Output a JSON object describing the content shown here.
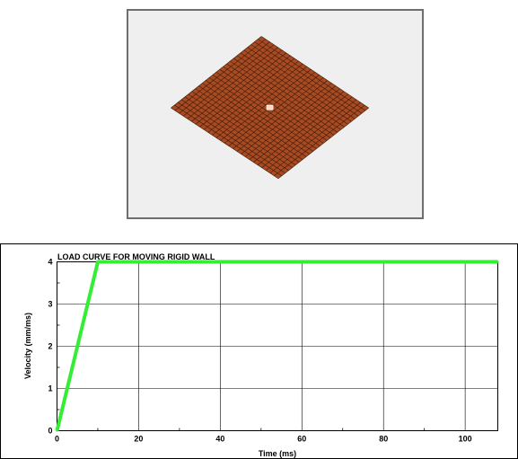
{
  "mesh_view": {
    "mesh_color": "#a84a22",
    "line_color": "#3a1a08",
    "divisions": 26,
    "background": "#efefef"
  },
  "chart_data": {
    "type": "line",
    "title": "LOAD CURVE FOR MOVING RIGID WALL",
    "xlabel": "Time (ms)",
    "ylabel": "Velocity (mm/ms)",
    "xlim": [
      0,
      108
    ],
    "ylim": [
      0,
      4
    ],
    "x_ticks": [
      0,
      20,
      40,
      60,
      80,
      100
    ],
    "y_ticks": [
      0,
      1,
      2,
      3,
      4
    ],
    "grid": true,
    "series": [
      {
        "color": "#33ee33",
        "x": [
          0,
          10,
          108
        ],
        "y": [
          0,
          4,
          4
        ]
      }
    ]
  }
}
